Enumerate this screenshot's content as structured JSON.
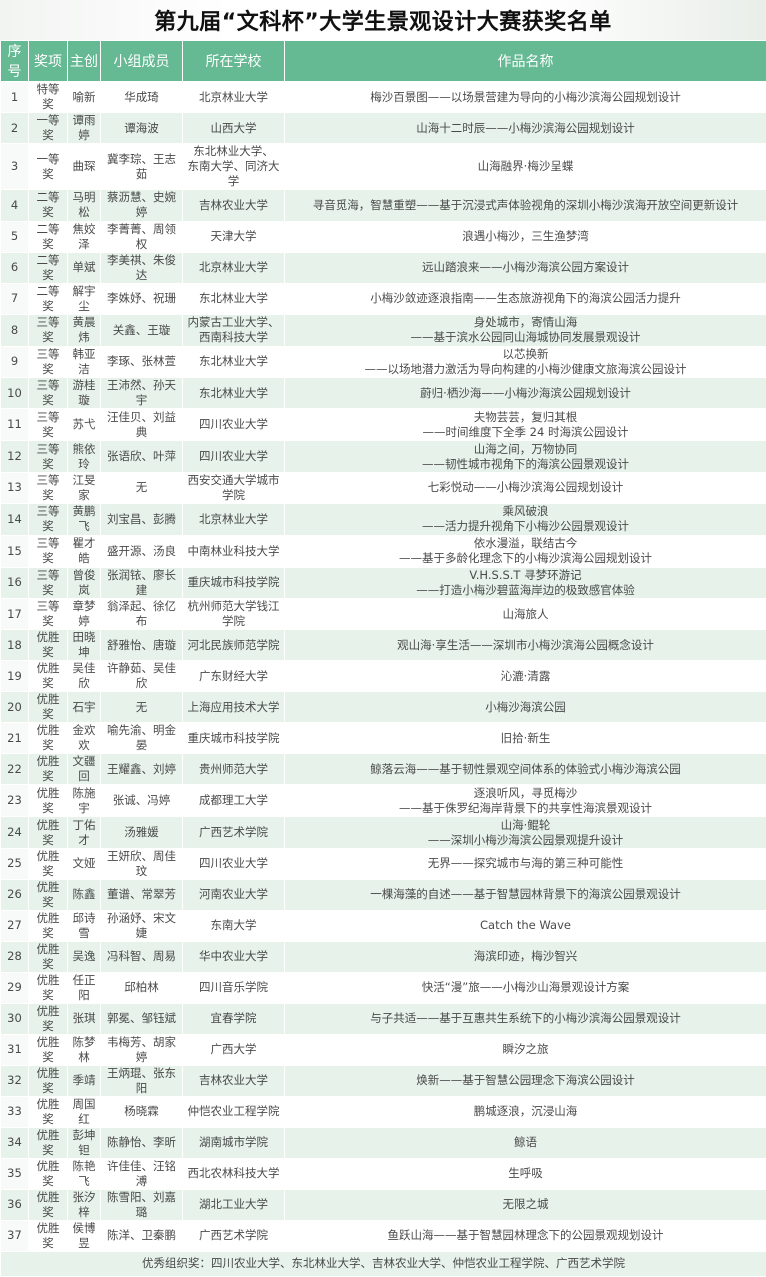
{
  "title": "第九届“文科杯”大学生景观设计大赛获奖名单",
  "headers": [
    "序号",
    "奖项",
    "主创",
    "小组成员",
    "所在学校",
    "作品名称"
  ],
  "rows": [
    [
      "1",
      "特等奖",
      "喻新",
      "华成琦",
      "北京林业大学",
      "梅沙百景图——以场景营建为导向的小梅沙滨海公园规划设计"
    ],
    [
      "2",
      "一等奖",
      "谭雨婷",
      "谭海波",
      "山西大学",
      "山海十二时辰——小梅沙滨海公园规划设计"
    ],
    [
      "3",
      "一等奖",
      "曲琛",
      "冀李琮、王志茹",
      "东北林业大学、\n东南大学、同济大学",
      "山海融界·梅沙呈蝶"
    ],
    [
      "4",
      "二等奖",
      "马明松",
      "蔡沥慧、史婉婷",
      "吉林农业大学",
      "寻音觅海，智慧重塑——基于沉浸式声体验视角的深圳小梅沙滨海开放空间更新设计"
    ],
    [
      "5",
      "二等奖",
      "焦姣泽",
      "李菁菁、周领权",
      "天津大学",
      "浪遇小梅沙，三生渔梦湾"
    ],
    [
      "6",
      "二等奖",
      "单斌",
      "李美祺、朱俊达",
      "北京林业大学",
      "远山踏浪来——小梅沙海滨公园方案设计"
    ],
    [
      "7",
      "二等奖",
      "解宇尘",
      "李姝妤、祝珊",
      "东北林业大学",
      "小梅沙敛迹逐浪指南——生态旅游视角下的海滨公园活力提升"
    ],
    [
      "8",
      "三等奖",
      "黄晨炜",
      "关鑫、王璇",
      "内蒙古工业大学、\n西南科技大学",
      "身处城市，寄情山海\n——基于滨水公园同山海城协同发展景观设计"
    ],
    [
      "9",
      "三等奖",
      "韩亚洁",
      "李琢、张林萱",
      "东北林业大学",
      "以芯换新\n——以场地潜力激活为导向构建的小梅沙健康文旅海滨公园设计"
    ],
    [
      "10",
      "三等奖",
      "游桂璇",
      "王沛然、孙天宇",
      "东北林业大学",
      "蔚归·栖沙海——小梅沙海滨公园规划设计"
    ],
    [
      "11",
      "三等奖",
      "苏弋",
      "汪佳贝、刘益典",
      "四川农业大学",
      "夫物芸芸，复归其根\n——时间维度下全季 24 时海滨公园设计"
    ],
    [
      "12",
      "三等奖",
      "熊依玲",
      "张语欣、叶萍",
      "四川农业大学",
      "山海之间，万物协同\n——韧性城市视角下的海滨公园景观设计"
    ],
    [
      "13",
      "三等奖",
      "江旻家",
      "无",
      "西安交通大学城市学院",
      "七彩悦动——小梅沙滨海公园规划设计"
    ],
    [
      "14",
      "三等奖",
      "黄鹏飞",
      "刘宝昌、彭腾",
      "北京林业大学",
      "乘风破浪\n——活力提升视角下小梅沙公园景观设计"
    ],
    [
      "15",
      "三等奖",
      "瞿才皓",
      "盛开源、汤良",
      "中南林业科技大学",
      "依水漫溢，联结古今\n——基于多龄化理念下的小梅沙滨海公园规划设计"
    ],
    [
      "16",
      "三等奖",
      "曾俊岚",
      "张润铱、廖长建",
      "重庆城市科技学院",
      "V.H.S.S.T 寻梦环游记\n——打造小梅沙碧蓝海岸边的极致感官体验"
    ],
    [
      "17",
      "三等奖",
      "章梦婷",
      "翁泽起、徐亿布",
      "杭州师范大学钱江学院",
      "山海旅人"
    ],
    [
      "18",
      "优胜奖",
      "田晓坤",
      "舒雅怡、唐璇",
      "河北民族师范学院",
      "观山海·享生活——深圳市小梅沙滨海公园概念设计"
    ],
    [
      "19",
      "优胜奖",
      "吴佳欣",
      "许静茹、吴佳欣",
      "广东财经大学",
      "沁漉·清露"
    ],
    [
      "20",
      "优胜奖",
      "石宇",
      "无",
      "上海应用技术大学",
      "小梅沙海滨公园"
    ],
    [
      "21",
      "优胜奖",
      "金欢欢",
      "喻先渝、明金晏",
      "重庆城市科技学院",
      "旧拾·新生"
    ],
    [
      "22",
      "优胜奖",
      "文疆回",
      "王耀鑫、刘婷",
      "贵州师范大学",
      "鲸落云海——基于韧性景观空间体系的体验式小梅沙海滨公园"
    ],
    [
      "23",
      "优胜奖",
      "陈施宇",
      "张诚、冯婷",
      "成都理工大学",
      "逐浪听风，寻觅梅沙\n——基于侏罗纪海岸背景下的共享性海滨景观设计"
    ],
    [
      "24",
      "优胜奖",
      "丁佑才",
      "汤雅媛",
      "广西艺术学院",
      "山海·鲲轮\n——深圳小梅沙海滨公园景观提升设计"
    ],
    [
      "25",
      "优胜奖",
      "文娅",
      "王妍欣、周佳玟",
      "四川农业大学",
      "无界——探究城市与海的第三种可能性"
    ],
    [
      "26",
      "优胜奖",
      "陈鑫",
      "董谱、常翠芳",
      "河南农业大学",
      "一棵海藻的自述——基于智慧园林背景下的海滨公园景观设计"
    ],
    [
      "27",
      "优胜奖",
      "邱诗雪",
      "孙涵妤、宋文婕",
      "东南大学",
      "Catch the Wave"
    ],
    [
      "28",
      "优胜奖",
      "吴逸",
      "冯科智、周易",
      "华中农业大学",
      "海滨印迹，梅沙智兴"
    ],
    [
      "29",
      "优胜奖",
      "任正阳",
      "邱柏林",
      "四川音乐学院",
      "快活“漫”旅——小梅沙山海景观设计方案"
    ],
    [
      "30",
      "优胜奖",
      "张琪",
      "郭冕、邹钰斌",
      "宜春学院",
      "与子共适——基于互惠共生系统下的小梅沙滨海公园景观设计"
    ],
    [
      "31",
      "优胜奖",
      "陈梦林",
      "韦梅芳、胡家婷",
      "广西大学",
      "瞬汐之旅"
    ],
    [
      "32",
      "优胜奖",
      "季靖",
      "王炳琨、张东阳",
      "吉林农业大学",
      "焕新——基于智慧公园理念下海滨公园设计"
    ],
    [
      "33",
      "优胜奖",
      "周国红",
      "杨晓霖",
      "仲恺农业工程学院",
      "鹏城逐浪，沉浸山海"
    ],
    [
      "34",
      "优胜奖",
      "彭坤钽",
      "陈静怡、李昕",
      "湖南城市学院",
      "鲸语"
    ],
    [
      "35",
      "优胜奖",
      "陈艳飞",
      "许佳佳、汪铭溥",
      "西北农林科技大学",
      "生呼吸"
    ],
    [
      "36",
      "优胜奖",
      "张汐梓",
      "陈雪阳、刘嘉璐",
      "湖北工业大学",
      "无限之城"
    ],
    [
      "37",
      "优胜奖",
      "侯博昱",
      "陈洋、卫秦鹏",
      "广西艺术学院",
      "鱼跃山海——基于智慧园林理念下的公园景观规划设计"
    ]
  ],
  "footer": "优秀组织奖：四川农业大学、东北林业大学、吉林农业大学、仲恺农业工程学院、广西艺术学院",
  "colors": {
    "header_bg": "#65b993",
    "row_alt": "#e6f2ea"
  }
}
